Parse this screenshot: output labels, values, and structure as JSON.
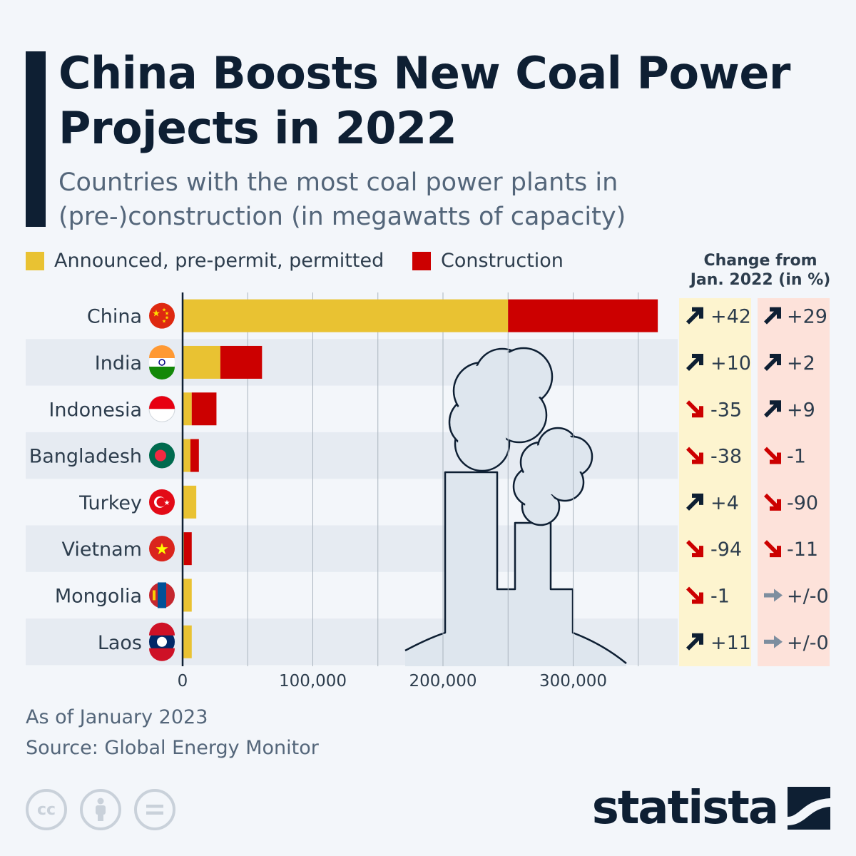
{
  "header": {
    "title": "China Boosts New Coal Power Projects in 2022",
    "subtitle": "Countries with the most coal power plants in (pre-)construction (in megawatts of capacity)"
  },
  "legend": {
    "announced_label": "Announced, pre-permit, permitted",
    "construction_label": "Construction"
  },
  "change_header": {
    "line1": "Change from",
    "line2": "Jan. 2022 (in %)"
  },
  "footer": {
    "note": "As of January 2023",
    "source": "Source: Global Energy Monitor",
    "brand": "statista",
    "cc_icons": [
      "cc-icon",
      "attribution-icon",
      "no-derivatives-icon"
    ]
  },
  "colors": {
    "announced": "#e9c232",
    "construction": "#cc0000",
    "title": "#0e1f33",
    "arrow_up": "#0e1f33",
    "arrow_down": "#cc0000",
    "arrow_flat": "#7d8e9f",
    "change_col1_bg": "#fdf4cf",
    "change_col2_bg": "#fde2da"
  },
  "chart_data": {
    "type": "bar",
    "orientation": "horizontal",
    "stacked": true,
    "categories": [
      "China",
      "India",
      "Indonesia",
      "Bangladesh",
      "Turkey",
      "Vietnam",
      "Mongolia",
      "Laos"
    ],
    "series": [
      {
        "name": "Announced, pre-permit, permitted",
        "values": [
          250000,
          29000,
          7000,
          6000,
          10500,
          1000,
          7000,
          7000
        ]
      },
      {
        "name": "Construction",
        "values": [
          115000,
          32000,
          19000,
          6500,
          0,
          6000,
          0,
          0
        ]
      }
    ],
    "xlim": [
      0,
      380000
    ],
    "xticks": [
      0,
      100000,
      200000,
      300000
    ],
    "xtick_labels": [
      "0",
      "100,000",
      "200,000",
      "300,000"
    ],
    "grid": true,
    "legend_position": "top-left",
    "flag_icons": [
      "china-flag-icon",
      "india-flag-icon",
      "indonesia-flag-icon",
      "bangladesh-flag-icon",
      "turkey-flag-icon",
      "vietnam-flag-icon",
      "mongolia-flag-icon",
      "laos-flag-icon"
    ],
    "change_announced": [
      {
        "label": "+42",
        "dir": "up"
      },
      {
        "label": "+10",
        "dir": "up"
      },
      {
        "label": "-35",
        "dir": "down"
      },
      {
        "label": "-38",
        "dir": "down"
      },
      {
        "label": "+4",
        "dir": "up"
      },
      {
        "label": "-94",
        "dir": "down"
      },
      {
        "label": "-1",
        "dir": "down"
      },
      {
        "label": "+11",
        "dir": "up"
      }
    ],
    "change_construction": [
      {
        "label": "+29",
        "dir": "up"
      },
      {
        "label": "+2",
        "dir": "up"
      },
      {
        "label": "+9",
        "dir": "up"
      },
      {
        "label": "-1",
        "dir": "down"
      },
      {
        "label": "-90",
        "dir": "down"
      },
      {
        "label": "-11",
        "dir": "down"
      },
      {
        "label": "+/-0",
        "dir": "flat"
      },
      {
        "label": "+/-0",
        "dir": "flat"
      }
    ]
  }
}
